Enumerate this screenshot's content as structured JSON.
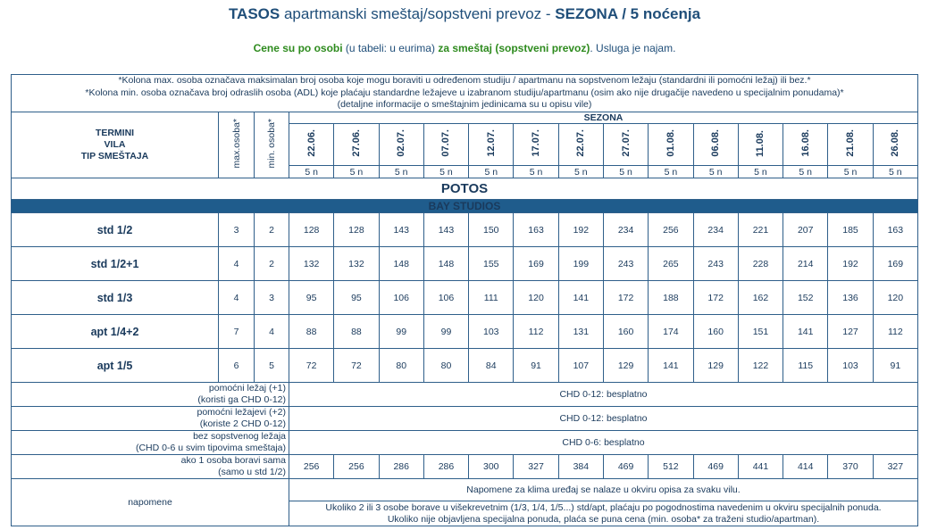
{
  "title": {
    "part1": "TASOS",
    "part2": " apartmanski smeštaj/sopstveni prevoz - ",
    "part3": "SEZONA / 5 noćenja"
  },
  "subtitle": {
    "part1": "Cene su po osobi",
    "part2": " (u tabeli: u eurima) ",
    "part3": "za smeštaj (sopstveni prevoz)",
    "part4": ". Usluga je najam."
  },
  "notes": [
    "*Kolona max. osoba označava maksimalan broj osoba koje mogu boraviti u određenom studiju / apartmanu na sopstvenom ležaju (standardni ili pomoćni ležaj) ili bez.*",
    "*Kolona min. osoba označava broj odraslih osoba (ADL) koje plaćaju standardne ležajeve u izabranom studiju/apartmanu (osim ako nije drugačije navedeno u specijalnim ponudama)*",
    "(detaljne informacije o smeštajnim jedinicama su u opisu vile)"
  ],
  "header": {
    "left": [
      "TERMINI",
      "VILA",
      "TIP SMEŠTAJA"
    ],
    "max_label": "max.osoba*",
    "min_label": "min. osoba*",
    "season": "SEZONA",
    "dates": [
      "22.06.",
      "27.06.",
      "02.07.",
      "07.07.",
      "12.07.",
      "17.07.",
      "22.07.",
      "27.07.",
      "01.08.",
      "06.08.",
      "11.08.",
      "16.08.",
      "21.08.",
      "26.08."
    ],
    "nights": [
      "5 n",
      "5 n",
      "5 n",
      "5 n",
      "5 n",
      "5 n",
      "5 n",
      "5 n",
      "5 n",
      "5 n",
      "5 n",
      "5 n",
      "5 n",
      "5 n"
    ]
  },
  "location": "POTOS",
  "group": "BAY STUDIOS",
  "units": [
    {
      "name": "std 1/2",
      "max": "3",
      "min": "2",
      "prices": [
        "128",
        "128",
        "143",
        "143",
        "150",
        "163",
        "192",
        "234",
        "256",
        "234",
        "221",
        "207",
        "185",
        "163"
      ]
    },
    {
      "name": "std 1/2+1",
      "max": "4",
      "min": "2",
      "prices": [
        "132",
        "132",
        "148",
        "148",
        "155",
        "169",
        "199",
        "243",
        "265",
        "243",
        "228",
        "214",
        "192",
        "169"
      ]
    },
    {
      "name": "std 1/3",
      "max": "4",
      "min": "3",
      "prices": [
        "95",
        "95",
        "106",
        "106",
        "111",
        "120",
        "141",
        "172",
        "188",
        "172",
        "162",
        "152",
        "136",
        "120"
      ]
    },
    {
      "name": "apt 1/4+2",
      "max": "7",
      "min": "4",
      "prices": [
        "88",
        "88",
        "99",
        "99",
        "103",
        "112",
        "131",
        "160",
        "174",
        "160",
        "151",
        "141",
        "127",
        "112"
      ]
    },
    {
      "name": "apt 1/5",
      "max": "6",
      "min": "5",
      "prices": [
        "72",
        "72",
        "80",
        "80",
        "84",
        "91",
        "107",
        "129",
        "141",
        "129",
        "122",
        "115",
        "103",
        "91"
      ]
    }
  ],
  "extras": [
    {
      "label1": "pomoćni ležaj (+1)",
      "label2": "(koristi ga CHD 0-12)",
      "value": "CHD 0-12: besplatno"
    },
    {
      "label1": "pomoćni ležajevi (+2)",
      "label2": "(koriste 2 CHD 0-12)",
      "value": "CHD 0-12: besplatno"
    },
    {
      "label1": "bez sopstvenog ležaja",
      "label2": "(CHD 0-6 u svim tipovima smeštaja)",
      "value": "CHD 0-6: besplatno"
    }
  ],
  "single": {
    "label1": "ako 1 osoba boravi sama",
    "label2": "(samo u std 1/2)",
    "prices": [
      "256",
      "256",
      "286",
      "286",
      "300",
      "327",
      "384",
      "469",
      "512",
      "469",
      "441",
      "414",
      "370",
      "327"
    ]
  },
  "remarks": {
    "label": "napomene",
    "line1": "Napomene za klima uređaj se nalaze u okviru opisa za svaku vilu.",
    "line2": "Ukoliko 2 ili 3 osobe borave u višekrevetnim (1/3, 1/4, 1/5...) std/apt, plaćaju po pogodnostima navedenim u okviru specijalnih ponuda.",
    "line3": "Ukoliko nije objavljena specijalna ponuda, plaća se puna cena (min. osoba* za traženi studio/apartman)."
  }
}
